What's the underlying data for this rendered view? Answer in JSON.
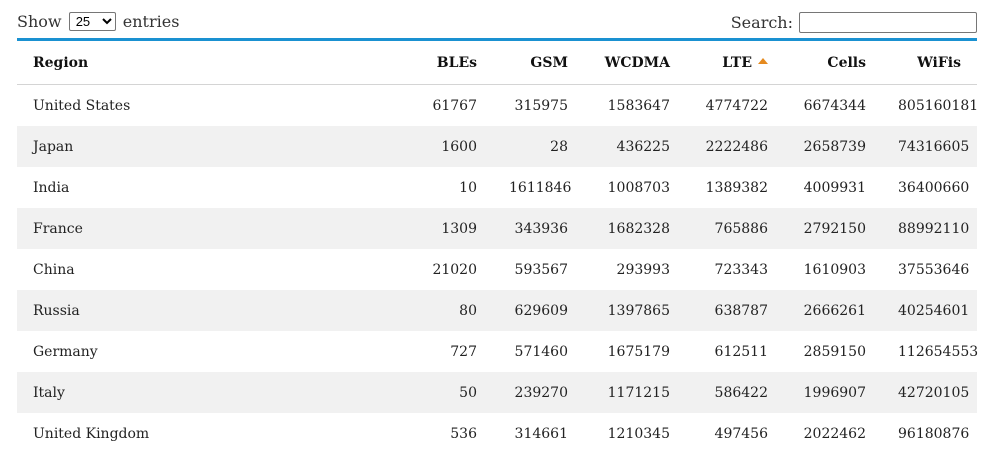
{
  "controls": {
    "show_label": "Show",
    "entries_label": "entries",
    "length_selected": "25",
    "search_label": "Search:",
    "search_value": ""
  },
  "table": {
    "columns": [
      "Region",
      "BLEs",
      "GSM",
      "WCDMA",
      "LTE",
      "Cells",
      "WiFis"
    ],
    "sorted_column": "LTE",
    "sort_direction": "ascending-indicator",
    "rows": [
      [
        "United States",
        "61767",
        "315975",
        "1583647",
        "4774722",
        "6674344",
        "805160181"
      ],
      [
        "Japan",
        "1600",
        "28",
        "436225",
        "2222486",
        "2658739",
        "74316605"
      ],
      [
        "India",
        "10",
        "1611846",
        "1008703",
        "1389382",
        "4009931",
        "36400660"
      ],
      [
        "France",
        "1309",
        "343936",
        "1682328",
        "765886",
        "2792150",
        "88992110"
      ],
      [
        "China",
        "21020",
        "593567",
        "293993",
        "723343",
        "1610903",
        "37553646"
      ],
      [
        "Russia",
        "80",
        "629609",
        "1397865",
        "638787",
        "2666261",
        "40254601"
      ],
      [
        "Germany",
        "727",
        "571460",
        "1675179",
        "612511",
        "2859150",
        "112654553"
      ],
      [
        "Italy",
        "50",
        "239270",
        "1171215",
        "586422",
        "1996907",
        "42720105"
      ],
      [
        "United Kingdom",
        "536",
        "314661",
        "1210345",
        "497456",
        "2022462",
        "96180876"
      ]
    ]
  },
  "colors": {
    "accent_line": "#1a91d1",
    "sort_arrow": "#e58a1f",
    "stripe": "#f1f1f1"
  }
}
